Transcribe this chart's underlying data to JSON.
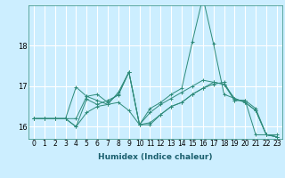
{
  "title": "",
  "xlabel": "Humidex (Indice chaleur)",
  "ylabel": "",
  "bg_color": "#cceeff",
  "grid_color": "#ffffff",
  "line_color": "#2e8b7a",
  "xlim": [
    -0.5,
    23.5
  ],
  "ylim": [
    15.7,
    19.0
  ],
  "yticks": [
    16,
    17,
    18
  ],
  "xticks": [
    0,
    1,
    2,
    3,
    4,
    5,
    6,
    7,
    8,
    9,
    10,
    11,
    12,
    13,
    14,
    15,
    16,
    17,
    18,
    19,
    20,
    21,
    22,
    23
  ],
  "series": [
    [
      16.2,
      16.2,
      16.2,
      16.2,
      16.0,
      16.35,
      16.5,
      16.55,
      16.6,
      16.4,
      16.05,
      16.05,
      16.3,
      16.5,
      16.6,
      16.8,
      16.95,
      17.05,
      17.1,
      16.65,
      16.65,
      15.8,
      15.8,
      15.8
    ],
    [
      16.2,
      16.2,
      16.2,
      16.2,
      16.0,
      16.68,
      16.55,
      16.65,
      16.78,
      17.35,
      16.05,
      16.45,
      16.6,
      16.8,
      16.95,
      18.1,
      19.2,
      18.05,
      16.8,
      16.7,
      16.6,
      16.4,
      15.8,
      15.75
    ],
    [
      16.2,
      16.2,
      16.2,
      16.2,
      16.2,
      16.75,
      16.8,
      16.6,
      16.8,
      17.35,
      16.05,
      16.35,
      16.55,
      16.7,
      16.85,
      17.0,
      17.15,
      17.1,
      17.05,
      16.65,
      16.65,
      16.45,
      15.8,
      15.75
    ],
    [
      16.2,
      16.2,
      16.2,
      16.2,
      16.98,
      16.75,
      16.65,
      16.55,
      16.85,
      17.35,
      16.05,
      16.1,
      16.3,
      16.5,
      16.6,
      16.8,
      16.95,
      17.1,
      17.05,
      16.7,
      16.6,
      16.4,
      15.8,
      15.75
    ]
  ],
  "label_color": "#1a5f6e",
  "tick_fontsize": 5.5,
  "xlabel_fontsize": 6.5
}
